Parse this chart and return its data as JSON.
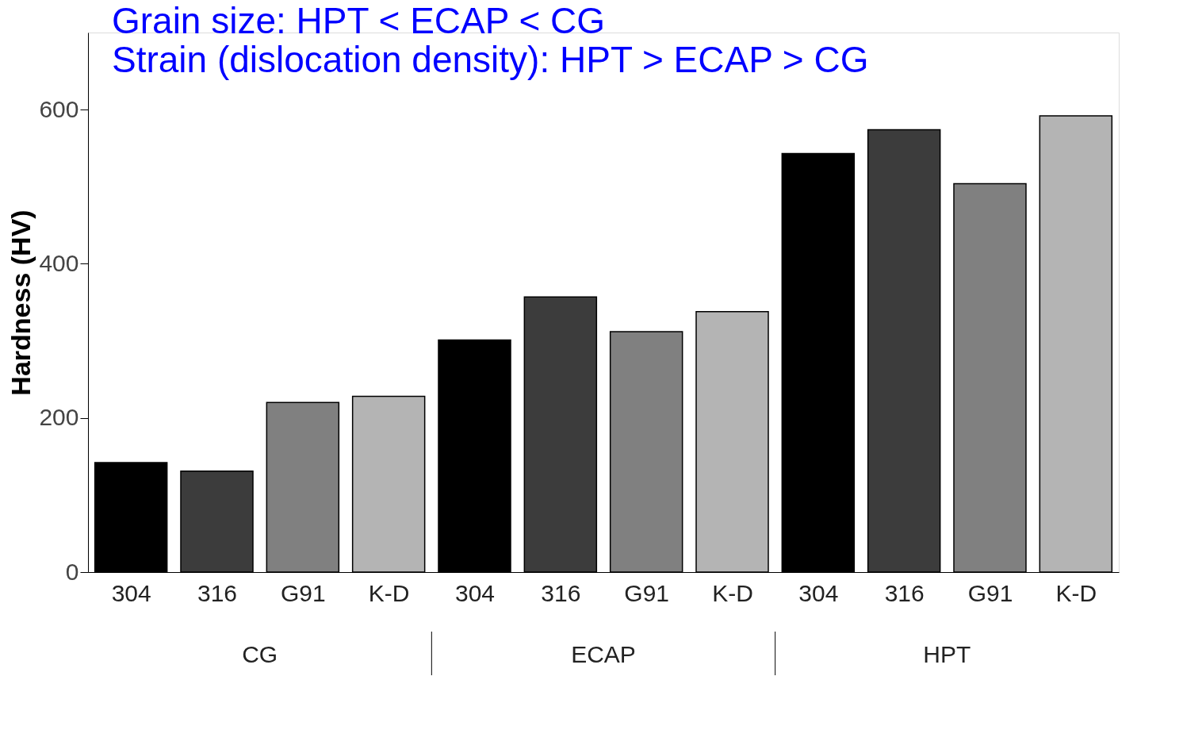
{
  "chart_data": {
    "type": "bar",
    "title": "Grain size: HPT < ECAP < CG",
    "subtitle": "Strain (dislocation density): HPT > ECAP > CG",
    "ylabel": "Hardness (HV)",
    "categories": [
      "304",
      "316",
      "G91",
      "K-D",
      "304",
      "316",
      "G91",
      "K-D",
      "304",
      "316",
      "G91",
      "K-D"
    ],
    "values": [
      142,
      131,
      220,
      228,
      301,
      357,
      312,
      338,
      543,
      574,
      504,
      592
    ],
    "colors": [
      "#000000",
      "#3c3c3c",
      "#808080",
      "#b4b4b4",
      "#000000",
      "#3c3c3c",
      "#808080",
      "#b4b4b4",
      "#000000",
      "#3c3c3c",
      "#808080",
      "#b4b4b4"
    ],
    "annotations": [
      "CG",
      "ECAP",
      "HPT"
    ],
    "ylim": [
      0,
      700
    ],
    "yticks": [
      0,
      200,
      400,
      600
    ],
    "grid": false
  }
}
